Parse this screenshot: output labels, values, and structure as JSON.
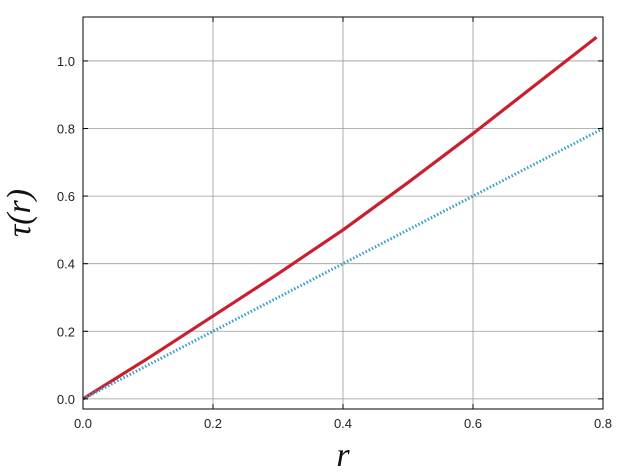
{
  "chart_data": {
    "type": "line",
    "title": "",
    "xlabel": "r",
    "ylabel": "τ(r)",
    "xlim": [
      0.0,
      0.8
    ],
    "ylim": [
      -0.03,
      1.13
    ],
    "grid": true,
    "x_ticks": [
      "0.0",
      "0.2",
      "0.4",
      "0.6",
      "0.8"
    ],
    "y_ticks": [
      "0.0",
      "0.2",
      "0.4",
      "0.6",
      "0.8",
      "1.0"
    ],
    "x_tick_values": [
      0.0,
      0.2,
      0.4,
      0.6,
      0.8
    ],
    "y_tick_values": [
      0.0,
      0.2,
      0.4,
      0.6,
      0.8,
      1.0
    ],
    "series": [
      {
        "style": "solid",
        "color": "#c8202f",
        "x": [
          0.0,
          0.1,
          0.2,
          0.3,
          0.4,
          0.5,
          0.6,
          0.7,
          0.79
        ],
        "y": [
          0.0,
          0.12,
          0.245,
          0.37,
          0.5,
          0.64,
          0.785,
          0.935,
          1.07
        ]
      },
      {
        "style": "dotted",
        "color": "#3a9fc7",
        "x": [
          0.0,
          0.2,
          0.4,
          0.6,
          0.8
        ],
        "y": [
          0.0,
          0.2,
          0.4,
          0.6,
          0.8
        ]
      }
    ]
  }
}
